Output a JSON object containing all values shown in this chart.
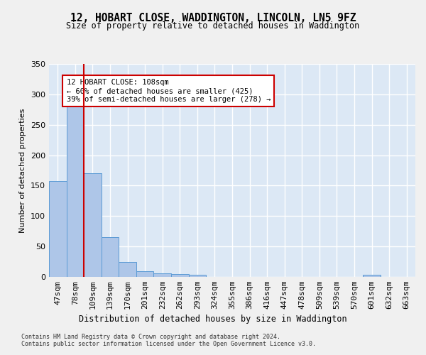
{
  "title_line1": "12, HOBART CLOSE, WADDINGTON, LINCOLN, LN5 9FZ",
  "title_line2": "Size of property relative to detached houses in Waddington",
  "xlabel": "Distribution of detached houses by size in Waddington",
  "ylabel": "Number of detached properties",
  "bar_values": [
    157,
    285,
    170,
    65,
    25,
    9,
    6,
    5,
    4,
    0,
    0,
    0,
    0,
    0,
    0,
    0,
    0,
    0,
    4,
    0,
    0
  ],
  "categories": [
    "47sqm",
    "78sqm",
    "109sqm",
    "139sqm",
    "170sqm",
    "201sqm",
    "232sqm",
    "262sqm",
    "293sqm",
    "324sqm",
    "355sqm",
    "386sqm",
    "416sqm",
    "447sqm",
    "478sqm",
    "509sqm",
    "539sqm",
    "570sqm",
    "601sqm",
    "632sqm",
    "663sqm"
  ],
  "bar_color": "#aec6e8",
  "bar_edge_color": "#5b9bd5",
  "vline_x_index": 2,
  "vline_color": "#cc0000",
  "annotation_text": "12 HOBART CLOSE: 108sqm\n← 60% of detached houses are smaller (425)\n39% of semi-detached houses are larger (278) →",
  "ylim": [
    0,
    350
  ],
  "yticks": [
    0,
    50,
    100,
    150,
    200,
    250,
    300,
    350
  ],
  "footer_text": "Contains HM Land Registry data © Crown copyright and database right 2024.\nContains public sector information licensed under the Open Government Licence v3.0.",
  "background_color": "#dce8f5",
  "grid_color": "#ffffff",
  "fig_bg_color": "#f0f0f0"
}
